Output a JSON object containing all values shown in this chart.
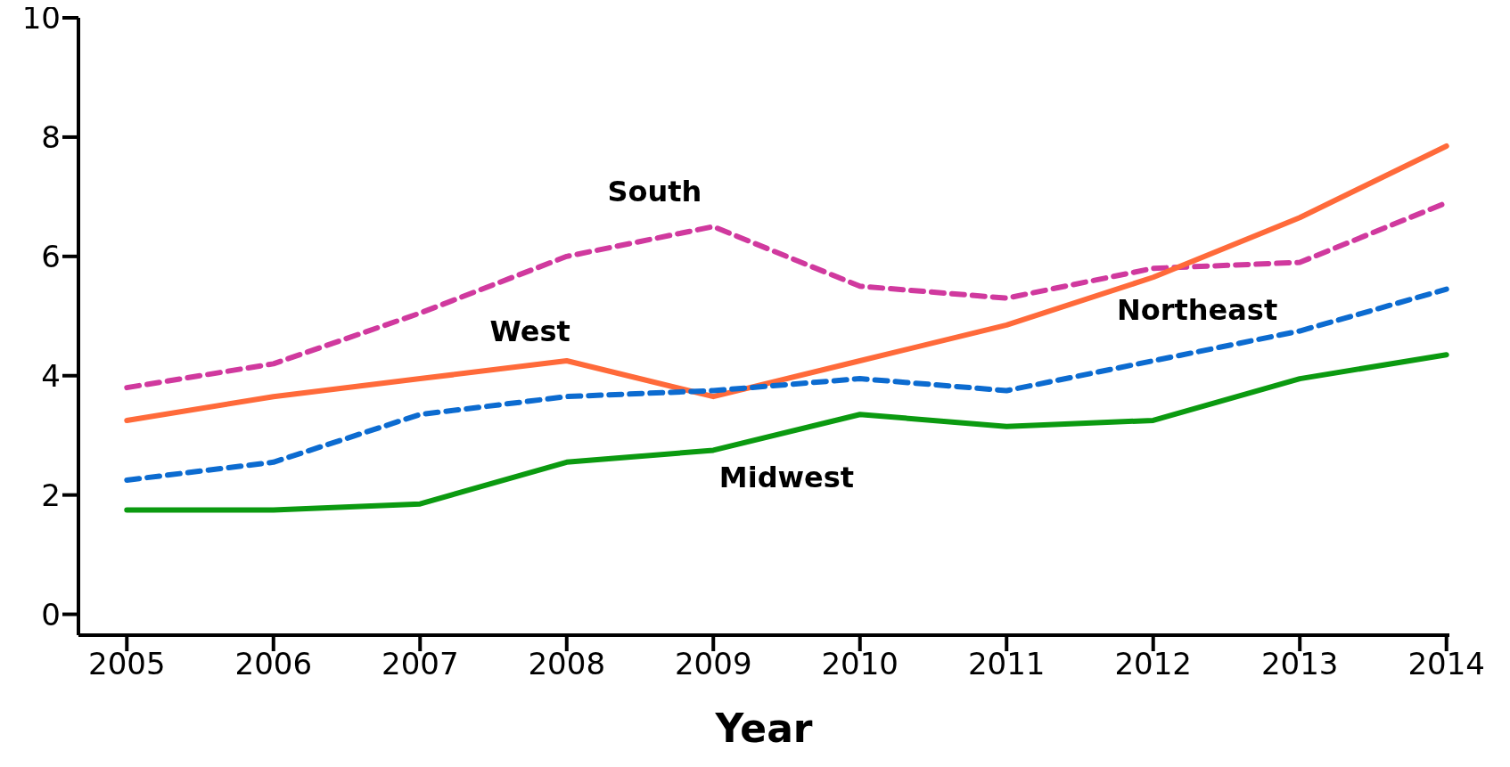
{
  "chart_data": {
    "type": "line",
    "xlabel": "Year",
    "x": [
      2005,
      2006,
      2007,
      2008,
      2009,
      2010,
      2011,
      2012,
      2013,
      2014
    ],
    "xlim": [
      2004.67,
      2014.02
    ],
    "xticks": [
      2005,
      2006,
      2007,
      2008,
      2009,
      2010,
      2011,
      2012,
      2013,
      2014
    ],
    "ylim": [
      -0.35,
      10
    ],
    "yticks": [
      0,
      2,
      4,
      6,
      8,
      10
    ],
    "grid": false,
    "legend": false,
    "marker": "none",
    "series": [
      {
        "name": "South",
        "color": "#d0399e",
        "line_style": "dashed",
        "values": [
          3.8,
          4.2,
          5.05,
          6.0,
          6.5,
          5.5,
          5.3,
          5.8,
          5.9,
          6.9
        ]
      },
      {
        "name": "West",
        "color": "#ff6a3a",
        "line_style": "solid",
        "values": [
          3.25,
          3.65,
          3.95,
          4.25,
          3.65,
          4.25,
          4.85,
          5.65,
          6.65,
          7.85
        ]
      },
      {
        "name": "Northeast",
        "color": "#0c6bd0",
        "line_style": "dashed",
        "values": [
          2.25,
          2.55,
          3.35,
          3.65,
          3.75,
          3.95,
          3.75,
          4.25,
          4.75,
          5.45
        ]
      },
      {
        "name": "Midwest",
        "color": "#0b9a10",
        "line_style": "solid",
        "values": [
          1.75,
          1.75,
          1.85,
          2.55,
          2.75,
          3.35,
          3.15,
          3.25,
          3.95,
          4.35
        ]
      }
    ]
  }
}
